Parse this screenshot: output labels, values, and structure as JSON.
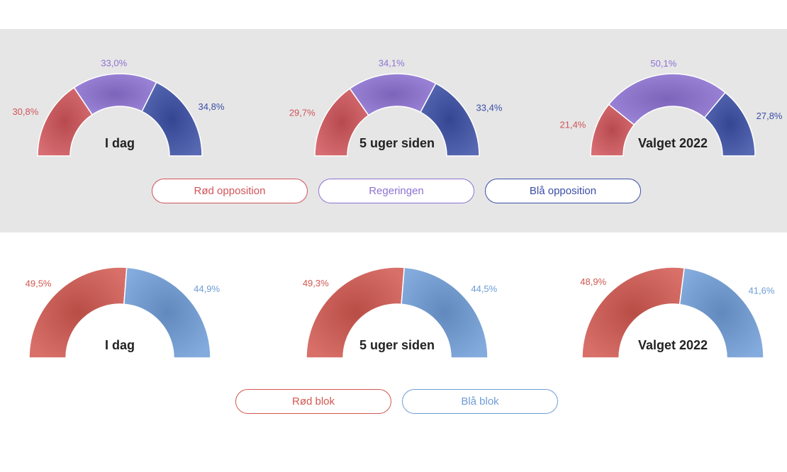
{
  "colors": {
    "red": "#d0545a",
    "purple": "#8d72d3",
    "blue": "#3b4ea6",
    "red_block": "#d1574f",
    "blue_block": "#6e9cd7",
    "panel_bg": "#e6e6e6",
    "title_text": "#222222"
  },
  "chart_data": [
    {
      "type": "gauge",
      "group": "top",
      "charts": [
        {
          "title": "I dag",
          "segments": [
            {
              "name": "Rød opposition",
              "value": 30.8,
              "label": "30,8%"
            },
            {
              "name": "Regeringen",
              "value": 33.0,
              "label": "33,0%"
            },
            {
              "name": "Blå opposition",
              "value": 34.8,
              "label": "34,8%"
            }
          ]
        },
        {
          "title": "5 uger siden",
          "segments": [
            {
              "name": "Rød opposition",
              "value": 29.7,
              "label": "29,7%"
            },
            {
              "name": "Regeringen",
              "value": 34.1,
              "label": "34,1%"
            },
            {
              "name": "Blå opposition",
              "value": 33.4,
              "label": "33,4%"
            }
          ]
        },
        {
          "title": "Valget 2022",
          "segments": [
            {
              "name": "Rød opposition",
              "value": 21.4,
              "label": "21,4%"
            },
            {
              "name": "Regeringen",
              "value": 50.1,
              "label": "50,1%"
            },
            {
              "name": "Blå opposition",
              "value": 27.8,
              "label": "27,8%"
            }
          ]
        }
      ]
    },
    {
      "type": "gauge",
      "group": "bottom",
      "charts": [
        {
          "title": "I dag",
          "segments": [
            {
              "name": "Rød blok",
              "value": 49.5,
              "label": "49,5%"
            },
            {
              "name": "Blå blok",
              "value": 44.9,
              "label": "44,9%"
            }
          ]
        },
        {
          "title": "5 uger siden",
          "segments": [
            {
              "name": "Rød blok",
              "value": 49.3,
              "label": "49,3%"
            },
            {
              "name": "Blå blok",
              "value": 44.5,
              "label": "44,5%"
            }
          ]
        },
        {
          "title": "Valget 2022",
          "segments": [
            {
              "name": "Rød blok",
              "value": 48.9,
              "label": "48,9%"
            },
            {
              "name": "Blå blok",
              "value": 41.6,
              "label": "41,6%"
            }
          ]
        }
      ]
    }
  ],
  "legend_top": [
    {
      "label": "Rød opposition",
      "color_key": "red"
    },
    {
      "label": "Regeringen",
      "color_key": "purple"
    },
    {
      "label": "Blå opposition",
      "color_key": "blue"
    }
  ],
  "legend_bottom": [
    {
      "label": "Rød blok",
      "color_key": "red_block"
    },
    {
      "label": "Blå blok",
      "color_key": "blue_block"
    }
  ]
}
